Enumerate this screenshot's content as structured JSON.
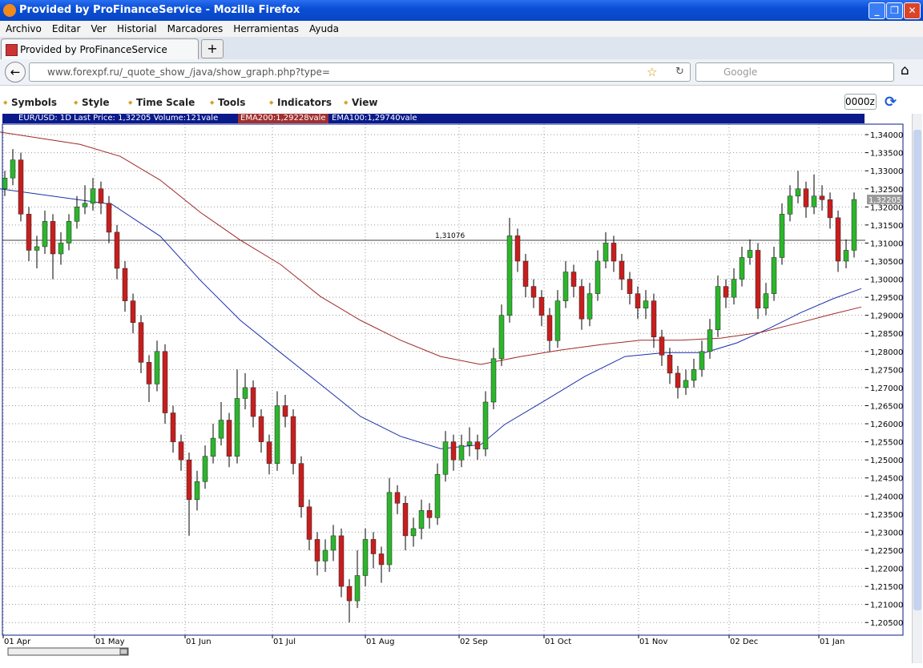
{
  "window": {
    "title": "Provided by ProFinanceService - Mozilla Firefox"
  },
  "menu": [
    "Archivo",
    "Editar",
    "Ver",
    "Historial",
    "Marcadores",
    "Herramientas",
    "Ayuda"
  ],
  "tab": {
    "title": "Provided by ProFinanceService"
  },
  "navbar": {
    "url": "www.forexpf.ru/_quote_show_/java/show_graph.php?type=",
    "search": "Google"
  },
  "toolbar": {
    "items": [
      "Symbols",
      "Style",
      "Time Scale",
      "Tools",
      "Indicators",
      "View"
    ],
    "input": "0000z"
  },
  "infobar": {
    "main": "EUR/USD: 1D Last Price: 1,32205 Volume:121vale",
    "ema200": "EMA200:1,29228vale",
    "ema100": "EMA100:1,29740vale"
  },
  "chart_data": {
    "type": "candlestick",
    "open": [
      1.325,
      1.328,
      1.333,
      1.318,
      1.308,
      1.309,
      1.316,
      1.307,
      1.31,
      1.316,
      1.32,
      1.321,
      1.325,
      1.321,
      1.313,
      1.303,
      1.294,
      1.288,
      1.277,
      1.271,
      1.28,
      1.263,
      1.255,
      1.25,
      1.239,
      1.244,
      1.251,
      1.256,
      1.261,
      1.251,
      1.267,
      1.27,
      1.262,
      1.255,
      1.249,
      1.265,
      1.262,
      1.249,
      1.237,
      1.228,
      1.222,
      1.225,
      1.229,
      1.215,
      1.211,
      1.218,
      1.228,
      1.224,
      1.221,
      1.241,
      1.238,
      1.229,
      1.231,
      1.236,
      1.234,
      1.246,
      1.255,
      1.25,
      1.254,
      1.255,
      1.253,
      1.266,
      1.278,
      1.29,
      1.312,
      1.305,
      1.298,
      1.295,
      1.29,
      1.283,
      1.294,
      1.302,
      1.298,
      1.289,
      1.296,
      1.305,
      1.31,
      1.305,
      1.3,
      1.296,
      1.292,
      1.294,
      1.284,
      1.279,
      1.274,
      1.27,
      1.272,
      1.275,
      1.28,
      1.286,
      1.298,
      1.295,
      1.3,
      1.306,
      1.308,
      1.292,
      1.296,
      1.306,
      1.318,
      1.323,
      1.325,
      1.32,
      1.323,
      1.322,
      1.317,
      1.305,
      1.308
    ],
    "high": [
      1.33,
      1.336,
      1.335,
      1.32,
      1.312,
      1.319,
      1.318,
      1.313,
      1.318,
      1.323,
      1.326,
      1.328,
      1.327,
      1.323,
      1.315,
      1.305,
      1.296,
      1.29,
      1.279,
      1.283,
      1.282,
      1.265,
      1.257,
      1.252,
      1.247,
      1.254,
      1.26,
      1.266,
      1.263,
      1.275,
      1.274,
      1.272,
      1.264,
      1.257,
      1.269,
      1.268,
      1.264,
      1.251,
      1.239,
      1.23,
      1.228,
      1.232,
      1.231,
      1.217,
      1.225,
      1.231,
      1.23,
      1.226,
      1.245,
      1.243,
      1.24,
      1.234,
      1.239,
      1.238,
      1.249,
      1.258,
      1.257,
      1.257,
      1.259,
      1.257,
      1.269,
      1.281,
      1.293,
      1.317,
      1.314,
      1.307,
      1.3,
      1.297,
      1.292,
      1.297,
      1.305,
      1.304,
      1.3,
      1.299,
      1.308,
      1.313,
      1.312,
      1.307,
      1.302,
      1.298,
      1.297,
      1.296,
      1.286,
      1.281,
      1.276,
      1.275,
      1.278,
      1.283,
      1.289,
      1.301,
      1.3,
      1.303,
      1.309,
      1.311,
      1.31,
      1.299,
      1.309,
      1.321,
      1.326,
      1.33,
      1.327,
      1.329,
      1.326,
      1.324,
      1.319,
      1.311,
      1.324
    ],
    "low": [
      1.323,
      1.326,
      1.316,
      1.305,
      1.303,
      1.307,
      1.3,
      1.304,
      1.308,
      1.314,
      1.318,
      1.319,
      1.318,
      1.31,
      1.3,
      1.291,
      1.285,
      1.274,
      1.266,
      1.269,
      1.26,
      1.252,
      1.247,
      1.229,
      1.236,
      1.242,
      1.249,
      1.254,
      1.248,
      1.249,
      1.264,
      1.259,
      1.252,
      1.246,
      1.247,
      1.259,
      1.246,
      1.234,
      1.225,
      1.218,
      1.219,
      1.222,
      1.212,
      1.205,
      1.209,
      1.215,
      1.22,
      1.216,
      1.219,
      1.235,
      1.225,
      1.226,
      1.228,
      1.231,
      1.232,
      1.244,
      1.247,
      1.248,
      1.251,
      1.25,
      1.251,
      1.264,
      1.276,
      1.288,
      1.302,
      1.295,
      1.292,
      1.287,
      1.28,
      1.281,
      1.292,
      1.295,
      1.286,
      1.287,
      1.294,
      1.303,
      1.302,
      1.297,
      1.293,
      1.289,
      1.289,
      1.281,
      1.276,
      1.271,
      1.267,
      1.268,
      1.27,
      1.273,
      1.278,
      1.284,
      1.292,
      1.293,
      1.298,
      1.304,
      1.289,
      1.29,
      1.294,
      1.304,
      1.316,
      1.321,
      1.317,
      1.318,
      1.319,
      1.314,
      1.302,
      1.303,
      1.306
    ],
    "close": [
      1.328,
      1.333,
      1.318,
      1.308,
      1.309,
      1.316,
      1.307,
      1.31,
      1.316,
      1.32,
      1.321,
      1.325,
      1.321,
      1.313,
      1.303,
      1.294,
      1.288,
      1.277,
      1.271,
      1.28,
      1.263,
      1.255,
      1.25,
      1.239,
      1.244,
      1.251,
      1.256,
      1.261,
      1.251,
      1.267,
      1.27,
      1.262,
      1.255,
      1.249,
      1.265,
      1.262,
      1.249,
      1.237,
      1.228,
      1.222,
      1.225,
      1.229,
      1.215,
      1.211,
      1.218,
      1.228,
      1.224,
      1.221,
      1.241,
      1.238,
      1.229,
      1.231,
      1.236,
      1.234,
      1.246,
      1.255,
      1.25,
      1.254,
      1.255,
      1.253,
      1.266,
      1.278,
      1.29,
      1.312,
      1.305,
      1.298,
      1.295,
      1.29,
      1.283,
      1.294,
      1.302,
      1.298,
      1.289,
      1.296,
      1.305,
      1.31,
      1.305,
      1.3,
      1.296,
      1.292,
      1.294,
      1.284,
      1.279,
      1.274,
      1.27,
      1.272,
      1.275,
      1.28,
      1.286,
      1.298,
      1.295,
      1.3,
      1.306,
      1.308,
      1.292,
      1.296,
      1.306,
      1.318,
      1.323,
      1.325,
      1.32,
      1.323,
      1.322,
      1.317,
      1.305,
      1.308,
      1.32205
    ],
    "up_color": "#2db52d",
    "down_color": "#c81e1e",
    "lines": [
      {
        "name": "EMA100",
        "color": "#1c2fa8",
        "x": [
          -0.6,
          13.4,
          19.4,
          24.4,
          29.4,
          34.4,
          39.4,
          44.4,
          49.4,
          54.4,
          59.4,
          62.4,
          67.4,
          72.4,
          77.4,
          82.4,
          87.4,
          91.4,
          95.4,
          99.4,
          103.4,
          106.9
        ],
        "values": [
          1.325,
          1.3207,
          1.3119,
          1.2997,
          1.2886,
          1.2797,
          1.2709,
          1.262,
          1.2565,
          1.2531,
          1.2542,
          1.2598,
          1.2664,
          1.2731,
          1.2786,
          1.2797,
          1.2797,
          1.2824,
          1.2864,
          1.2908,
          1.2946,
          1.2974
        ]
      },
      {
        "name": "EMA200",
        "color": "#a02828",
        "x": [
          -0.6,
          9.4,
          14.4,
          19.4,
          24.4,
          29.4,
          34.4,
          39.4,
          44.4,
          49.4,
          54.4,
          59.4,
          64.4,
          69.4,
          74.4,
          79.4,
          84.4,
          89.4,
          94.4,
          99.4,
          103.4,
          106.9
        ],
        "values": [
          1.3407,
          1.3373,
          1.334,
          1.3274,
          1.3185,
          1.3108,
          1.3041,
          1.2952,
          1.2886,
          1.2831,
          1.2786,
          1.2764,
          1.2786,
          1.2804,
          1.2819,
          1.2831,
          1.2831,
          1.2837,
          1.2853,
          1.2881,
          1.2904,
          1.2923
        ]
      }
    ],
    "hline": {
      "value": 1.31076,
      "label": "1,31076"
    },
    "last_price": {
      "value": 1.32205,
      "label": "1,32205"
    },
    "xlim": [
      -0.3,
      107.4
    ],
    "ylim": [
      1.2015,
      1.3429
    ],
    "xticks": [
      {
        "value": -0.2,
        "label": "01 Apr"
      },
      {
        "value": 11.2,
        "label": "01 May"
      },
      {
        "value": 22.5,
        "label": "01 Jun"
      },
      {
        "value": 33.4,
        "label": "01 Jul"
      },
      {
        "value": 45,
        "label": "01 Aug"
      },
      {
        "value": 56.7,
        "label": "02 Sep"
      },
      {
        "value": 67.3,
        "label": "01 Oct"
      },
      {
        "value": 79.1,
        "label": "01 Nov"
      },
      {
        "value": 90.4,
        "label": "02 Dec"
      },
      {
        "value": 101.6,
        "label": "01 Jan"
      }
    ],
    "yticks": [
      {
        "value": 1.205,
        "label": "1,20500"
      },
      {
        "value": 1.21,
        "label": "1,21000"
      },
      {
        "value": 1.215,
        "label": "1,21500"
      },
      {
        "value": 1.22,
        "label": "1,22000"
      },
      {
        "value": 1.225,
        "label": "1,22500"
      },
      {
        "value": 1.23,
        "label": "1,23000"
      },
      {
        "value": 1.235,
        "label": "1,23500"
      },
      {
        "value": 1.24,
        "label": "1,24000"
      },
      {
        "value": 1.245,
        "label": "1,24500"
      },
      {
        "value": 1.25,
        "label": "1,25000"
      },
      {
        "value": 1.255,
        "label": "1,25500"
      },
      {
        "value": 1.26,
        "label": "1,26000"
      },
      {
        "value": 1.265,
        "label": "1,26500"
      },
      {
        "value": 1.27,
        "label": "1,27000"
      },
      {
        "value": 1.275,
        "label": "1,27500"
      },
      {
        "value": 1.28,
        "label": "1,28000"
      },
      {
        "value": 1.285,
        "label": "1,28500"
      },
      {
        "value": 1.29,
        "label": "1,29000"
      },
      {
        "value": 1.295,
        "label": "1,29500"
      },
      {
        "value": 1.3,
        "label": "1,30000"
      },
      {
        "value": 1.305,
        "label": "1,30500"
      },
      {
        "value": 1.31,
        "label": "1,31000"
      },
      {
        "value": 1.315,
        "label": "1,31500"
      },
      {
        "value": 1.32,
        "label": "1,32000"
      },
      {
        "value": 1.325,
        "label": "1,32500"
      },
      {
        "value": 1.33,
        "label": "1,33000"
      },
      {
        "value": 1.335,
        "label": "1,33500"
      },
      {
        "value": 1.34,
        "label": "1,34000"
      }
    ],
    "grid": true
  }
}
